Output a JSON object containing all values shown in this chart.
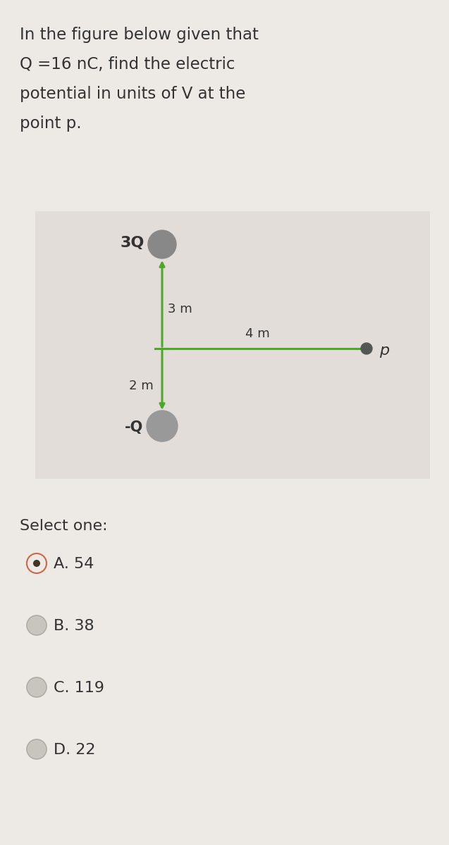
{
  "background_color": "#edeae6",
  "question_text_lines": [
    "In the figure below given that",
    "Q =16 nC, find the electric",
    "potential in units of V at the",
    "point p."
  ],
  "question_fontsize": 16.5,
  "diagram_bg": "#e2ddd8",
  "charge_3Q_label": "3Q",
  "charge_3Q_color": "#888888",
  "charge_neg_label": "-Q",
  "charge_neg_color": "#999999",
  "point_p_label": "p",
  "point_p_color": "#555555",
  "line_color": "#4da82a",
  "dist_3m": "3 m",
  "dist_2m": "2 m",
  "dist_4m": "4 m",
  "select_text": "Select one:",
  "options": [
    "A. 54",
    "B. 38",
    "C. 119",
    "D. 22"
  ],
  "selected_index": 0,
  "radio_selected_ring_color": "#cc6644",
  "radio_selected_dot_color": "#443322",
  "radio_unselected_color": "#c8c4be",
  "text_color": "#333333",
  "label_fontsize": 13,
  "option_fontsize": 16
}
